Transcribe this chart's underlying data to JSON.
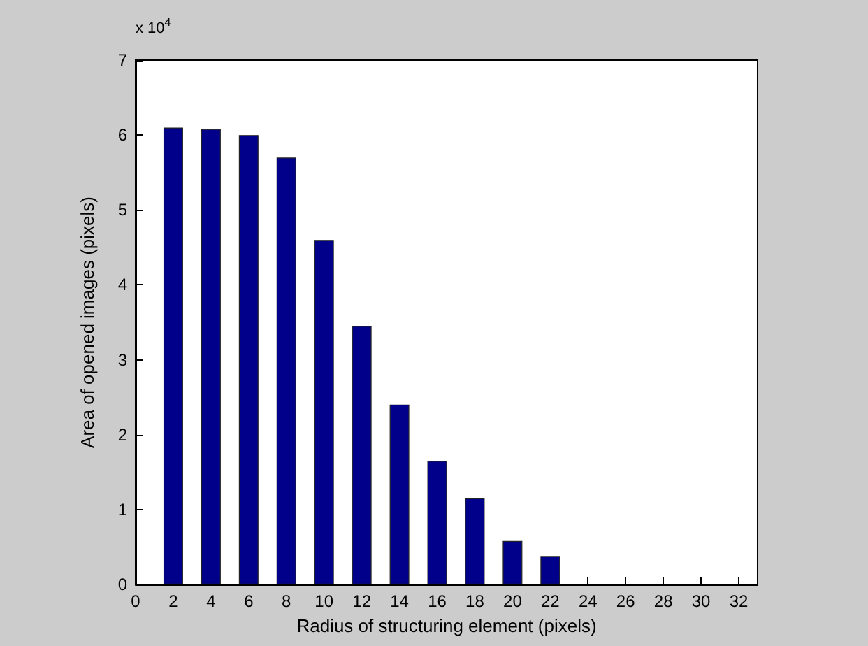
{
  "chart_data": {
    "type": "bar",
    "xlabel": "Radius of structuring element (pixels)",
    "ylabel": "Area of opened images (pixels)",
    "annotations": [
      "x 10$^{4}$"
    ],
    "x": [
      2,
      4,
      6,
      8,
      10,
      12,
      14,
      16,
      18,
      20,
      22
    ],
    "series": [
      {
        "color": "#00008b",
        "values": [
          6.1,
          6.08,
          6.0,
          5.7,
          4.6,
          3.45,
          2.4,
          1.65,
          1.15,
          0.58,
          0.38
        ]
      }
    ],
    "xlim": [
      0,
      33
    ],
    "xticks": [
      0,
      2,
      4,
      6,
      8,
      10,
      12,
      14,
      16,
      18,
      20,
      22,
      24,
      26,
      28,
      30,
      32
    ],
    "ylim": [
      0,
      7
    ],
    "yticks": [
      0,
      1,
      2,
      3,
      4,
      5,
      6,
      7
    ],
    "grid": false
  }
}
